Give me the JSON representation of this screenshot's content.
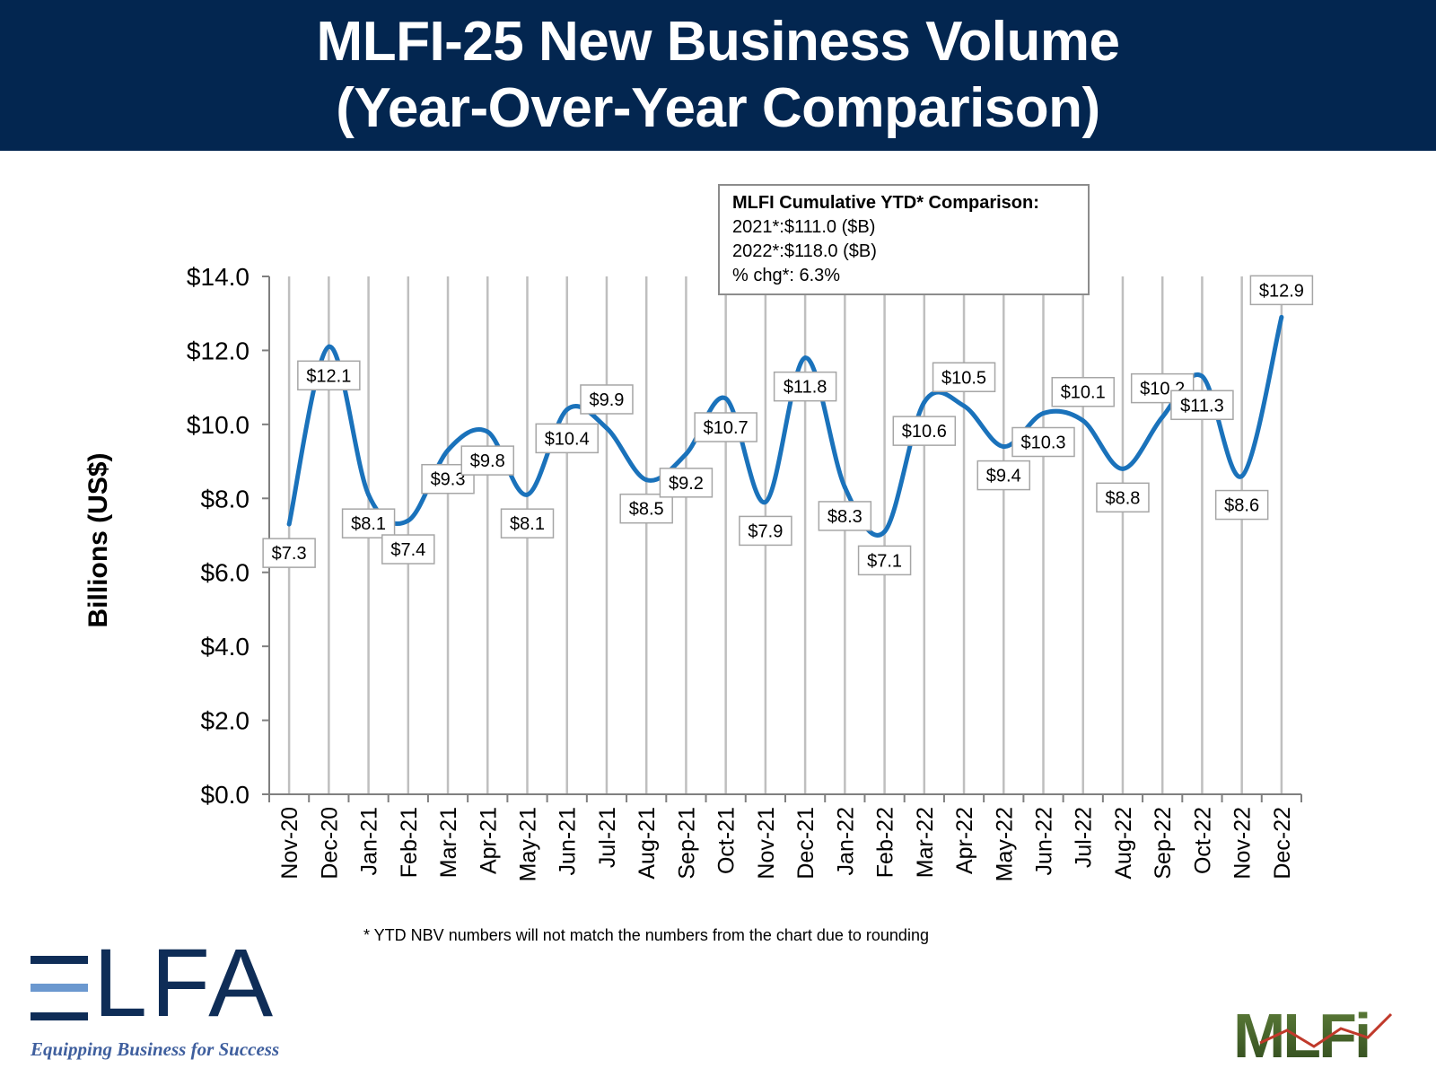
{
  "header": {
    "title_line1": "MLFI-25 New Business Volume",
    "title_line2": "(Year-Over-Year Comparison)"
  },
  "summary": {
    "title": "MLFI Cumulative YTD* Comparison:",
    "line1": "2021*:$111.0 ($B)",
    "line2": "2022*:$118.0 ($B)",
    "line3": "% chg*:  6.3%"
  },
  "footnote": "*  YTD NBV numbers will not match the numbers from the chart due to rounding",
  "logos": {
    "elfa_word": "LFA",
    "elfa_tagline": "Equipping Business for Success",
    "mlfi_word": "MLFi"
  },
  "colors": {
    "header_bg": "#032650",
    "line": "#1a72bb",
    "grid": "#bfbfbf"
  },
  "chart_data": {
    "type": "line",
    "ylabel": "Billions (US$)",
    "ylim": [
      0,
      14
    ],
    "yticks": [
      0,
      2,
      4,
      6,
      8,
      10,
      12,
      14
    ],
    "ytick_labels": [
      "$0.0",
      "$2.0",
      "$4.0",
      "$6.0",
      "$8.0",
      "$10.0",
      "$12.0",
      "$14.0"
    ],
    "categories": [
      "Nov-20",
      "Dec-20",
      "Jan-21",
      "Feb-21",
      "Mar-21",
      "Apr-21",
      "May-21",
      "Jun-21",
      "Jul-21",
      "Aug-21",
      "Sep-21",
      "Oct-21",
      "Nov-21",
      "Dec-21",
      "Jan-22",
      "Feb-22",
      "Mar-22",
      "Apr-22",
      "May-22",
      "Jun-22",
      "Jul-22",
      "Aug-22",
      "Sep-22",
      "Oct-22",
      "Nov-22",
      "Dec-22"
    ],
    "values": [
      7.3,
      12.1,
      8.1,
      7.4,
      9.3,
      9.8,
      8.1,
      10.4,
      9.9,
      8.5,
      9.2,
      10.7,
      7.9,
      11.8,
      8.3,
      7.1,
      10.6,
      10.5,
      9.4,
      10.3,
      10.1,
      8.8,
      10.2,
      11.3,
      8.6,
      12.9
    ],
    "data_labels": [
      "$7.3",
      "$12.1",
      "$8.1",
      "$7.4",
      "$9.3",
      "$9.8",
      "$8.1",
      "$10.4",
      "$9.9",
      "$8.5",
      "$9.2",
      "$10.7",
      "$7.9",
      "$11.8",
      "$8.3",
      "$7.1",
      "$10.6",
      "$10.5",
      "$9.4",
      "$10.3",
      "$10.1",
      "$8.8",
      "$10.2",
      "$11.3",
      "$8.6",
      "$12.9"
    ],
    "grid": "vertical"
  }
}
